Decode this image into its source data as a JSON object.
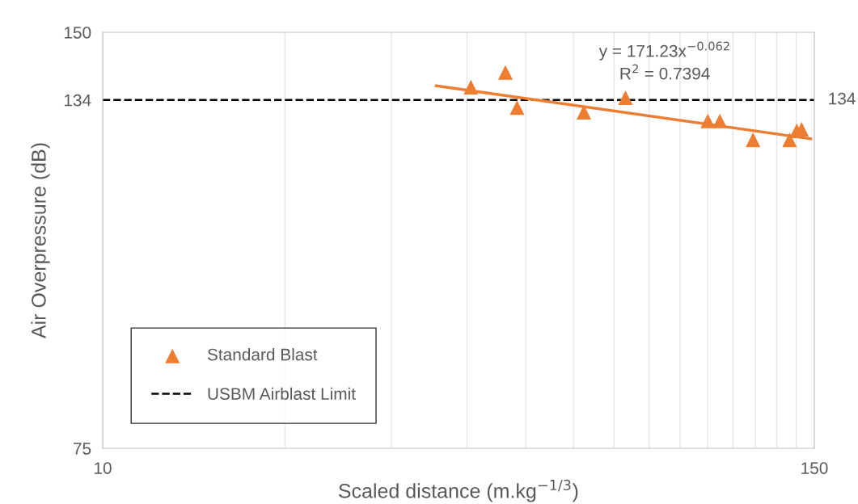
{
  "chart_data": {
    "type": "scatter",
    "xlabel": "Scaled distance (m.kg$^{−1/3}$)",
    "ylabel": "Air Overpressure (dB)",
    "log": "xy",
    "xlim": [
      10,
      150
    ],
    "xticks": [
      10,
      {
        "value": 20,
        "label": null
      },
      {
        "value": 30,
        "label": null
      },
      {
        "value": 40,
        "label": null
      },
      {
        "value": 50,
        "label": null
      },
      {
        "value": 60,
        "label": null
      },
      {
        "value": 70,
        "label": null
      },
      {
        "value": 80,
        "label": null
      },
      {
        "value": 90,
        "label": null
      },
      {
        "value": 100,
        "label": null
      },
      {
        "value": 110,
        "label": null
      },
      {
        "value": 120,
        "label": null
      },
      {
        "value": 130,
        "label": null
      },
      {
        "value": 140,
        "label": null
      },
      150
    ],
    "ylim": [
      75,
      150
    ],
    "yticks": [
      75,
      134,
      150
    ],
    "grid": "x",
    "legend": "bottom left",
    "series": [
      {
        "name": "Standard Blast",
        "marker": "triangle",
        "color": "#ed7d31",
        "x": [
          40.6,
          46.3,
          48.4,
          62.4,
          73.1,
          100,
          104.7,
          118.8,
          136.5,
          140.3,
          142.9
        ],
        "values": [
          136.9,
          140.3,
          132.3,
          131.3,
          134.5,
          129.4,
          129.4,
          125.4,
          125.4,
          127.3,
          127.6
        ]
      },
      {
        "type": "line",
        "color": "#ed7d31",
        "x": [
          35.6,
          148
        ],
        "values": [
          137.2,
          125.6
        ]
      }
    ],
    "ref_lines": [
      {
        "axis": "y",
        "value": 134,
        "label": "USBM Airblast Limit",
        "color": "#000000",
        "line_style": "dashed"
      }
    ],
    "annotations": [
      "y = 171.23x$^{−0.062}$",
      "R$^{2}$ = 0.7394",
      {
        "text": "134",
        "x": 150,
        "y": 134
      }
    ]
  }
}
